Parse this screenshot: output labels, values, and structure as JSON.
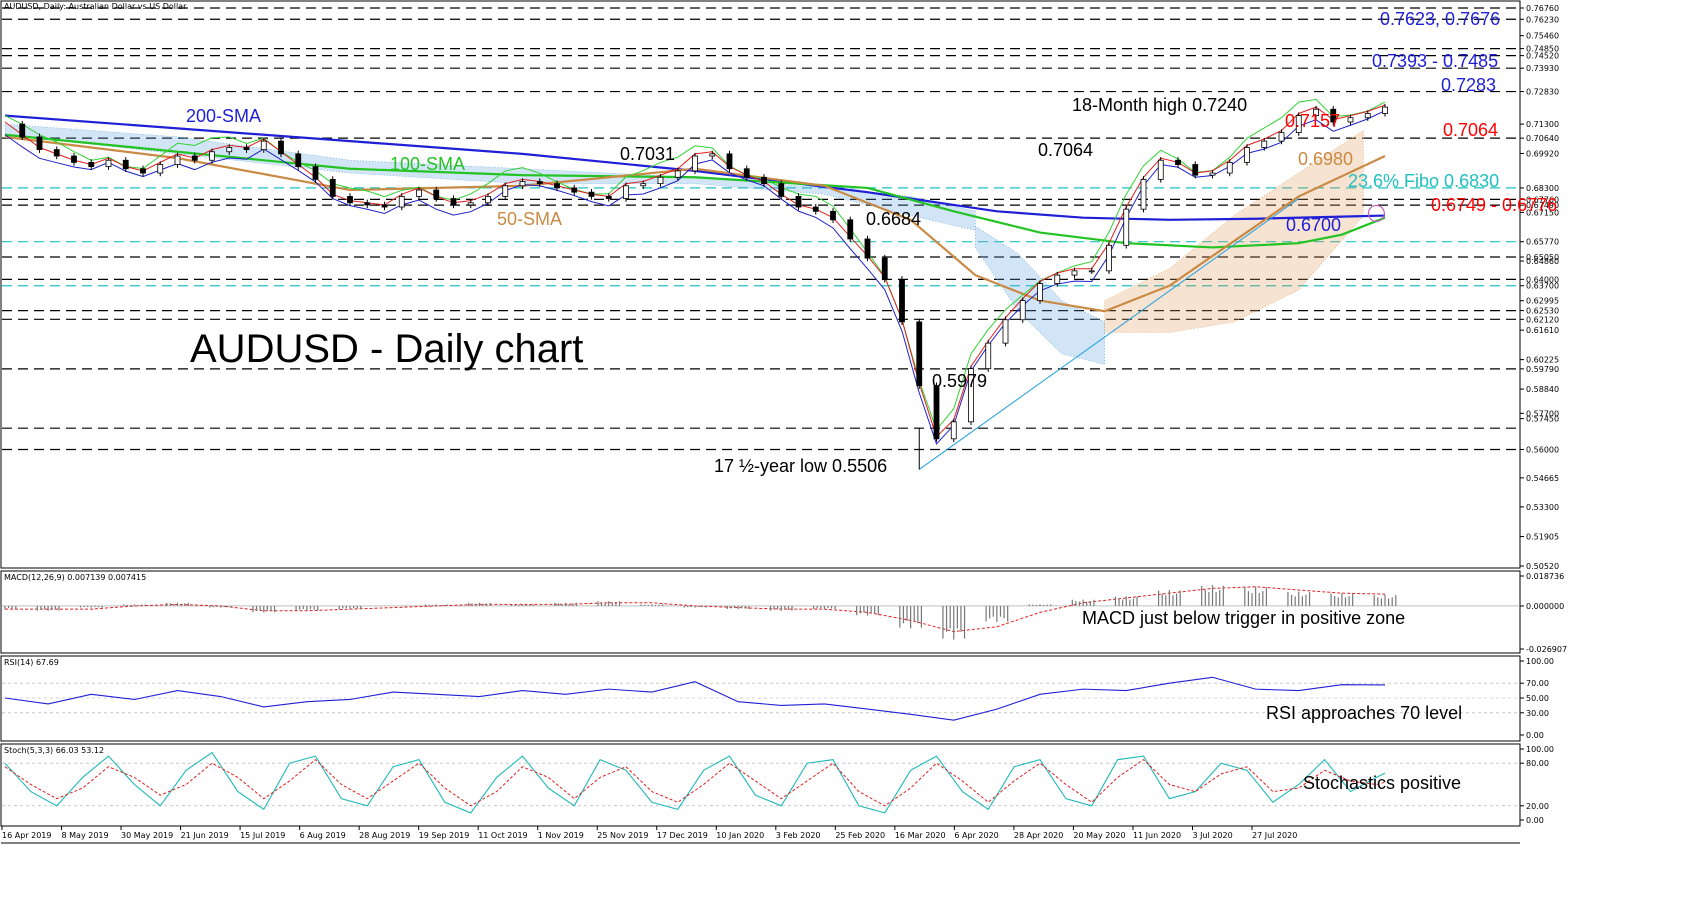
{
  "header": {
    "symbol_line": "AUDUSD, Daily: Australian Dollar vs US Dollar"
  },
  "chart_data": [
    {
      "type": "line",
      "panel": "price",
      "title": "AUDUSD - Daily chart",
      "ylim": [
        0.5052,
        0.7676
      ],
      "x_tick_labels": [
        "16 Apr 2019",
        "8 May 2019",
        "30 May 2019",
        "21 Jun 2019",
        "15 Jul 2019",
        "6 Aug 2019",
        "28 Aug 2019",
        "19 Sep 2019",
        "11 Oct 2019",
        "1 Nov 2019",
        "25 Nov 2019",
        "17 Dec 2019",
        "10 Jan 2020",
        "3 Feb 2020",
        "25 Feb 2020",
        "16 Mar 2020",
        "6 Apr 2020",
        "28 Apr 2020",
        "20 May 2020",
        "11 Jun 2020",
        "3 Jul 2020",
        "27 Jul 2020"
      ],
      "y_tick_labels": [
        "0.76760",
        "0.76230",
        "0.75460",
        "0.74850",
        "0.74520",
        "0.73930",
        "0.72830",
        "0.71300",
        "0.70640",
        "0.69920",
        "0.68300",
        "0.67760",
        "0.67490",
        "0.67150",
        "0.65770",
        "0.65050",
        "0.64860",
        "0.64000",
        "0.63700",
        "0.62995",
        "0.62530",
        "0.62120",
        "0.61610",
        "0.60225",
        "0.59790",
        "0.58840",
        "0.57700",
        "0.57450",
        "0.56000",
        "0.54665",
        "0.53300",
        "0.51905",
        "0.50520"
      ],
      "price_x": [
        0,
        4,
        8,
        12,
        16,
        20,
        24,
        28,
        32,
        36,
        40,
        44,
        48,
        52,
        56,
        60,
        64,
        68,
        72,
        76,
        80,
        84,
        88,
        92,
        96,
        100,
        104,
        108,
        112,
        116,
        120,
        124,
        128,
        132,
        136,
        140,
        144,
        148,
        152,
        156,
        160,
        164,
        168,
        172,
        176,
        180,
        184,
        188,
        192,
        196,
        200,
        204,
        208,
        212,
        216,
        220,
        224,
        228,
        232,
        236,
        240,
        244,
        248,
        252,
        256,
        260,
        264,
        268,
        272,
        276,
        280,
        284,
        288,
        292,
        296,
        300,
        304,
        308,
        312,
        316,
        320
      ],
      "price_close": [
        0.713,
        0.707,
        0.701,
        0.698,
        0.695,
        0.693,
        0.696,
        0.692,
        0.69,
        0.694,
        0.698,
        0.696,
        0.7,
        0.702,
        0.701,
        0.705,
        0.699,
        0.693,
        0.687,
        0.679,
        0.676,
        0.675,
        0.674,
        0.679,
        0.682,
        0.678,
        0.675,
        0.676,
        0.679,
        0.684,
        0.686,
        0.685,
        0.683,
        0.681,
        0.679,
        0.678,
        0.684,
        0.685,
        0.688,
        0.691,
        0.698,
        0.699,
        0.692,
        0.688,
        0.685,
        0.679,
        0.674,
        0.672,
        0.668,
        0.659,
        0.65,
        0.64,
        0.62,
        0.59,
        0.565,
        0.573,
        0.598,
        0.61,
        0.621,
        0.63,
        0.638,
        0.642,
        0.644,
        0.644,
        0.656,
        0.673,
        0.687,
        0.696,
        0.694,
        0.689,
        0.69,
        0.695,
        0.702,
        0.705,
        0.709,
        0.717,
        0.72,
        0.714,
        0.716,
        0.718,
        0.721
      ],
      "series": [
        {
          "name": "200-SMA",
          "color": "#1f1fd6",
          "x": [
            0,
            40,
            80,
            120,
            160,
            200,
            230,
            250,
            270,
            290,
            310,
            320
          ],
          "values": [
            0.717,
            0.711,
            0.705,
            0.699,
            0.691,
            0.681,
            0.672,
            0.669,
            0.668,
            0.6685,
            0.6695,
            0.67
          ]
        },
        {
          "name": "100-SMA",
          "color": "#22c322",
          "x": [
            0,
            40,
            80,
            120,
            160,
            200,
            220,
            240,
            260,
            280,
            300,
            310,
            320
          ],
          "values": [
            0.708,
            0.7,
            0.692,
            0.689,
            0.688,
            0.683,
            0.672,
            0.662,
            0.657,
            0.655,
            0.657,
            0.661,
            0.669
          ]
        },
        {
          "name": "50-SMA",
          "color": "#c98a45",
          "x": [
            0,
            40,
            80,
            120,
            160,
            190,
            210,
            225,
            240,
            255,
            270,
            285,
            300,
            320
          ],
          "values": [
            0.707,
            0.697,
            0.682,
            0.684,
            0.692,
            0.684,
            0.668,
            0.642,
            0.63,
            0.625,
            0.637,
            0.658,
            0.679,
            0.698
          ]
        }
      ],
      "annotations": [
        {
          "text": "200-SMA",
          "color": "#1f1fd6"
        },
        {
          "text": "100-SMA",
          "color": "#22c322"
        },
        {
          "text": "50-SMA",
          "color": "#c98a45"
        },
        {
          "text": "0.7031",
          "color": "#000000"
        },
        {
          "text": "0.6684",
          "color": "#000000"
        },
        {
          "text": "0.7064",
          "color": "#000000"
        },
        {
          "text": "18-Month high 0.7240",
          "color": "#000000"
        },
        {
          "text": "0.7157",
          "color": "#ff0000"
        },
        {
          "text": "0.5979",
          "color": "#000000"
        },
        {
          "text": "17 ½-year low 0.5506",
          "color": "#000000"
        },
        {
          "text": "0.7623, 0.7676",
          "color": "#1f1fd6"
        },
        {
          "text": "0.7393 - 0.7485",
          "color": "#1f1fd6"
        },
        {
          "text": "0.7283",
          "color": "#1f1fd6"
        },
        {
          "text": "0.7064",
          "color": "#ff0000"
        },
        {
          "text": "0.6980",
          "color": "#c98a45"
        },
        {
          "text": "23.6% Fibo 0.6830",
          "color": "#20c0c0"
        },
        {
          "text": "0.6749 - 0.6776",
          "color": "#ff0000"
        },
        {
          "text": "0.6700",
          "color": "#1f1fd6"
        }
      ],
      "horizontal_levels_black_dashed": [
        0.7676,
        0.7623,
        0.7485,
        0.7452,
        0.7393,
        0.7283,
        0.7064,
        0.6776,
        0.6749,
        0.6505,
        0.64,
        0.6253,
        0.6212,
        0.5979,
        0.57,
        0.56
      ],
      "horizontal_levels_cyan_dashed": [
        0.683,
        0.6577,
        0.637
      ]
    },
    {
      "type": "bar",
      "panel": "macd",
      "title": "MACD(12,26,9) 0.007139 0.007415",
      "annotation": "MACD just below trigger in positive zone",
      "y_tick_labels": [
        "0.018736",
        "0.000000",
        "-0.026907"
      ],
      "ylim": [
        -0.026907,
        0.018736
      ],
      "x": [
        0,
        10,
        20,
        30,
        40,
        50,
        60,
        70,
        80,
        90,
        100,
        110,
        120,
        130,
        140,
        150,
        160,
        170,
        180,
        190,
        200,
        210,
        220,
        230,
        240,
        250,
        260,
        270,
        280,
        290,
        300,
        310,
        320
      ],
      "histogram": [
        -0.002,
        -0.003,
        -0.001,
        0.001,
        0.002,
        -0.001,
        -0.004,
        -0.003,
        -0.002,
        0.0,
        0.001,
        0.002,
        0.001,
        0.002,
        0.003,
        0.001,
        -0.001,
        -0.002,
        -0.003,
        -0.002,
        -0.006,
        -0.014,
        -0.021,
        -0.01,
        0.001,
        0.004,
        0.006,
        0.01,
        0.013,
        0.012,
        0.009,
        0.008,
        0.007
      ],
      "signal": [
        -0.002,
        -0.002,
        -0.002,
        0.0,
        0.001,
        0.0,
        -0.003,
        -0.003,
        -0.002,
        -0.001,
        0.0,
        0.001,
        0.001,
        0.001,
        0.002,
        0.002,
        0.0,
        -0.001,
        -0.002,
        -0.002,
        -0.004,
        -0.009,
        -0.016,
        -0.013,
        -0.004,
        0.002,
        0.005,
        0.008,
        0.011,
        0.012,
        0.01,
        0.008,
        0.0074
      ]
    },
    {
      "type": "line",
      "panel": "rsi",
      "title": "RSI(14) 67.69",
      "annotation": "RSI approaches 70 level",
      "y_tick_labels": [
        "100.00",
        "70.00",
        "50.00",
        "30.00",
        "0.00"
      ],
      "ylim": [
        0,
        100
      ],
      "x": [
        0,
        10,
        20,
        30,
        40,
        50,
        60,
        70,
        80,
        90,
        100,
        110,
        120,
        130,
        140,
        150,
        160,
        170,
        180,
        190,
        200,
        210,
        220,
        230,
        240,
        250,
        260,
        270,
        280,
        290,
        300,
        310,
        320
      ],
      "values": [
        50,
        42,
        55,
        48,
        60,
        52,
        38,
        45,
        48,
        58,
        55,
        52,
        60,
        55,
        62,
        58,
        72,
        45,
        40,
        42,
        35,
        28,
        20,
        35,
        55,
        62,
        60,
        70,
        78,
        62,
        60,
        68,
        67.69
      ]
    },
    {
      "type": "line",
      "panel": "stochastic",
      "title": "Stoch(5,3,3) 66.03 53.12",
      "annotation": "Stochastics positive",
      "y_tick_labels": [
        "100.00",
        "80.00",
        "20.00",
        "0.00"
      ],
      "ylim": [
        0,
        100
      ],
      "x": [
        0,
        6,
        12,
        18,
        24,
        30,
        36,
        42,
        48,
        54,
        60,
        66,
        72,
        78,
        84,
        90,
        96,
        102,
        108,
        114,
        120,
        126,
        132,
        138,
        144,
        150,
        156,
        162,
        168,
        174,
        180,
        186,
        192,
        198,
        204,
        210,
        216,
        222,
        228,
        234,
        240,
        246,
        252,
        258,
        264,
        270,
        276,
        282,
        288,
        294,
        300,
        306,
        312,
        318,
        320
      ],
      "k": [
        80,
        40,
        20,
        60,
        90,
        50,
        20,
        70,
        95,
        40,
        15,
        80,
        90,
        30,
        20,
        75,
        85,
        25,
        10,
        60,
        90,
        45,
        20,
        85,
        70,
        25,
        15,
        70,
        90,
        35,
        20,
        80,
        85,
        20,
        10,
        70,
        90,
        40,
        15,
        75,
        85,
        30,
        20,
        85,
        90,
        30,
        40,
        80,
        70,
        25,
        50,
        85,
        40,
        60,
        66.03
      ],
      "d": [
        75,
        50,
        30,
        45,
        75,
        60,
        35,
        50,
        80,
        60,
        30,
        55,
        85,
        50,
        30,
        55,
        80,
        45,
        20,
        40,
        75,
        60,
        30,
        60,
        75,
        40,
        25,
        50,
        80,
        55,
        30,
        55,
        80,
        40,
        20,
        45,
        80,
        55,
        25,
        55,
        80,
        50,
        25,
        60,
        85,
        50,
        40,
        65,
        75,
        40,
        45,
        70,
        55,
        50,
        53.12
      ]
    }
  ]
}
